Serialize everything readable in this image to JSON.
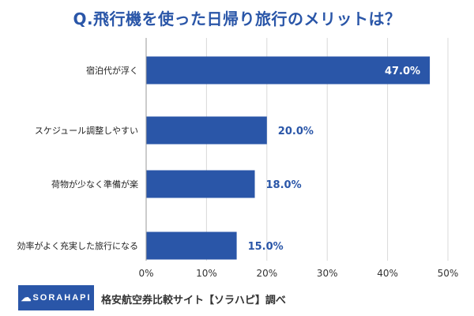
{
  "chart_data": {
    "type": "bar",
    "orientation": "horizontal",
    "title": "Q.飛行機を使った日帰り旅行のメリットは？",
    "categories": [
      "宿泊代が浮く",
      "スケジュール調整しやすい",
      "荷物が少なく準備が楽",
      "効率がよく充実した旅行になる"
    ],
    "values": [
      47.0,
      20.0,
      18.0,
      15.0
    ],
    "value_labels": [
      "47.0%",
      "20.0%",
      "18.0%",
      "15.0%"
    ],
    "xlim": [
      0,
      50
    ],
    "xticks": [
      "0%",
      "10%",
      "20%",
      "30%",
      "40%",
      "50%"
    ],
    "xlabel": "",
    "ylabel": "",
    "grid": true
  },
  "footer": {
    "logo_text": "SORAHAPI",
    "credit": "格安航空券比較サイト【ソラハピ】調べ"
  },
  "colors": {
    "bar": "#2a56a8",
    "title": "#2a56a8",
    "value_label": "#2a56a8",
    "grid": "#d9d9d9"
  }
}
